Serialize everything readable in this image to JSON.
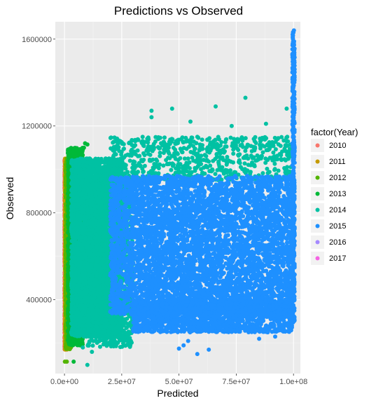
{
  "chart_data": {
    "type": "scatter",
    "title": "Predictions vs Observed",
    "xlabel": "Predicted",
    "ylabel": "Observed",
    "xlim": [
      -4000000,
      103000000
    ],
    "ylim": [
      60000,
      1680000
    ],
    "x_ticks": [
      0,
      25000000,
      50000000,
      75000000,
      100000000
    ],
    "x_tick_labels": [
      "0.0e+00",
      "2.5e+07",
      "5.0e+07",
      "7.5e+07",
      "1.0e+08"
    ],
    "y_ticks": [
      400000,
      800000,
      1200000,
      1600000
    ],
    "y_tick_labels": [
      "400000",
      "800000",
      "1200000",
      "1600000"
    ],
    "grid": true,
    "legend": {
      "title": "factor(Year)",
      "position": "right"
    },
    "series": [
      {
        "name": "2010",
        "color": "#F8766D",
        "clusters": [
          {
            "x": [
              0,
              1000000
            ],
            "y": [
              170000,
              1050000
            ],
            "n": 1400
          }
        ],
        "points": []
      },
      {
        "name": "2011",
        "color": "#C49A00",
        "clusters": [
          {
            "x": [
              200000,
              1800000
            ],
            "y": [
              170000,
              1050000
            ],
            "n": 1400
          }
        ],
        "points": []
      },
      {
        "name": "2012",
        "color": "#53B400",
        "clusters": [
          {
            "x": [
              500000,
              3000000
            ],
            "y": [
              170000,
              1050000
            ],
            "n": 1200
          }
        ],
        "points": [
          [
            200000,
            115000
          ],
          [
            1000000,
            115000
          ]
        ]
      },
      {
        "name": "2013",
        "color": "#00B938",
        "clusters": [
          {
            "x": [
              1500000,
              8000000
            ],
            "y": [
              190000,
              1100000
            ],
            "n": 2200
          }
        ],
        "points": [
          [
            4000000,
            115000
          ],
          [
            9000000,
            1120000
          ],
          [
            10000000,
            1115000
          ],
          [
            8500000,
            1100000
          ],
          [
            7500000,
            1090000
          ]
        ]
      },
      {
        "name": "2014",
        "color": "#00C1A3",
        "clusters": [
          {
            "x": [
              3000000,
              25000000
            ],
            "y": [
              230000,
              1050000
            ],
            "n": 7000
          },
          {
            "x": [
              10000000,
              30000000
            ],
            "y": [
              180000,
              950000
            ],
            "n": 1200
          },
          {
            "x": [
              20000000,
              99000000
            ],
            "y": [
              950000,
              1150000
            ],
            "n": 700
          }
        ],
        "points": [
          [
            38000000,
            1270000
          ],
          [
            47000000,
            1280000
          ],
          [
            66000000,
            1290000
          ],
          [
            79000000,
            1330000
          ],
          [
            97000000,
            1280000
          ],
          [
            38000000,
            1240000
          ],
          [
            55000000,
            1220000
          ],
          [
            73000000,
            1200000
          ],
          [
            88000000,
            1210000
          ],
          [
            10000000,
            100000
          ],
          [
            8000000,
            180000
          ],
          [
            12000000,
            160000
          ]
        ]
      },
      {
        "name": "2015",
        "color": "#1E90FF",
        "clusters": [
          {
            "x": [
              20000000,
              100000000
            ],
            "y": [
              330000,
              970000
            ],
            "n": 9000
          },
          {
            "x": [
              30000000,
              100000000
            ],
            "y": [
              250000,
              400000
            ],
            "n": 1500
          },
          {
            "x": [
              99500000,
              100500000
            ],
            "y": [
              300000,
              1640000
            ],
            "n": 500
          }
        ],
        "points": [
          [
            100200000,
            1640000
          ],
          [
            50000000,
            175000
          ],
          [
            52000000,
            190000
          ],
          [
            58000000,
            150000
          ],
          [
            63000000,
            170000
          ],
          [
            54000000,
            210000
          ],
          [
            85000000,
            220000
          ],
          [
            92000000,
            230000
          ]
        ]
      },
      {
        "name": "2016",
        "color": "#A58AFF",
        "clusters": [],
        "points": []
      },
      {
        "name": "2017",
        "color": "#F564E3",
        "clusters": [],
        "points": []
      }
    ]
  }
}
